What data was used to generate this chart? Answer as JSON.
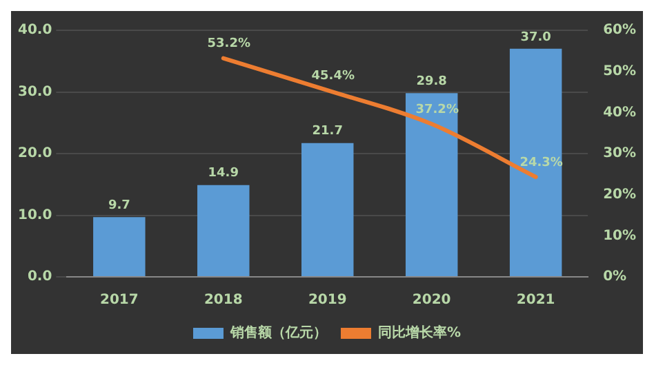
{
  "chart_data": {
    "type": "bar",
    "categories": [
      "2017",
      "2018",
      "2019",
      "2020",
      "2021"
    ],
    "series": [
      {
        "name": "销售额（亿元）",
        "color": "#5b9bd5",
        "values": [
          9.7,
          14.9,
          21.7,
          29.8,
          37.0
        ],
        "value_labels": [
          "9.7",
          "14.9",
          "21.7",
          "29.8",
          "37.0"
        ]
      },
      {
        "name": "同比增长率%",
        "type": "line",
        "axis": "y2",
        "color": "#ed7d31",
        "values": [
          null,
          53.2,
          45.4,
          37.2,
          24.3
        ],
        "value_labels": [
          null,
          "53.2%",
          "45.4%",
          "37.2%",
          "24.3%"
        ]
      }
    ],
    "ylim": [
      0,
      40
    ],
    "yticks": [
      {
        "value": 0,
        "label": "0.0"
      },
      {
        "value": 10,
        "label": "10.0"
      },
      {
        "value": 20,
        "label": "20.0"
      },
      {
        "value": 30,
        "label": "30.0"
      },
      {
        "value": 40,
        "label": "40.0"
      }
    ],
    "y2lim": [
      0,
      60
    ],
    "y2ticks": [
      {
        "value": 0,
        "label": "0%"
      },
      {
        "value": 10,
        "label": "10%"
      },
      {
        "value": 20,
        "label": "20%"
      },
      {
        "value": 30,
        "label": "30%"
      },
      {
        "value": 40,
        "label": "40%"
      },
      {
        "value": 50,
        "label": "50%"
      },
      {
        "value": 60,
        "label": "60%"
      }
    ],
    "grid": "y",
    "legend": "bottom",
    "marker": "none",
    "line_style": "solid"
  }
}
